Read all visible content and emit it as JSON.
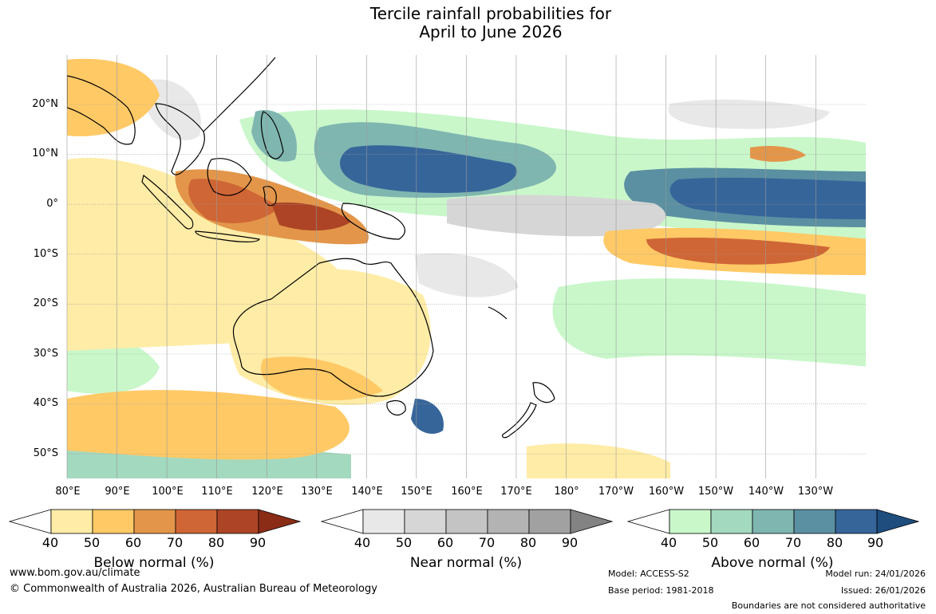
{
  "title": {
    "line1": "Tercile rainfall probabilities for",
    "line2": "April to June 2026"
  },
  "latitude_labels": [
    "20°N",
    "10°N",
    "0°",
    "10°S",
    "20°S",
    "30°S",
    "40°S",
    "50°S"
  ],
  "longitude_labels": [
    "80°E",
    "90°E",
    "100°E",
    "110°E",
    "120°E",
    "130°E",
    "140°E",
    "150°E",
    "160°E",
    "170°E",
    "180°",
    "170°W",
    "160°W",
    "150°W",
    "140°W",
    "130°W"
  ],
  "colorbars": [
    {
      "title": "Below normal (%)",
      "ticks": [
        "40",
        "50",
        "60",
        "70",
        "80",
        "90"
      ],
      "colors": [
        "#ffeca6",
        "#ffc966",
        "#e3964a",
        "#cf6635",
        "#ad4425",
        "#8a2c16"
      ]
    },
    {
      "title": "Near normal (%)",
      "ticks": [
        "40",
        "50",
        "60",
        "70",
        "80",
        "90"
      ],
      "colors": [
        "#e8e8e8",
        "#d6d6d6",
        "#c4c4c4",
        "#b3b3b3",
        "#a1a1a1",
        "#838383"
      ]
    },
    {
      "title": "Above normal (%)",
      "ticks": [
        "40",
        "50",
        "60",
        "70",
        "80",
        "90"
      ],
      "colors": [
        "#c9f7ca",
        "#a3d9bf",
        "#7fb6b0",
        "#5a90a1",
        "#36659a",
        "#1e4d7e"
      ]
    }
  ],
  "footer": {
    "website": "www.bom.gov.au/climate",
    "copyright": "© Commonwealth of Australia 2026, Australian Bureau of Meteorology",
    "model": "Model: ACCESS-S2",
    "base_period": "Base period: 1981-2018",
    "model_run": "Model run: 24/01/2026",
    "issued": "Issued: 26/01/2026",
    "disclaimer": "Boundaries are not considered authoritative"
  },
  "colors": {
    "map_background": "#ffffff",
    "gridline": "#9a9a9a",
    "coastline": "#000000"
  }
}
